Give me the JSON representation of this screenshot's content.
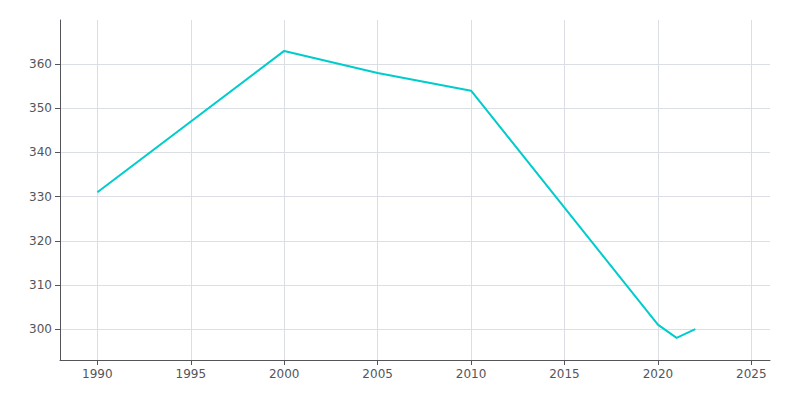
{
  "chart_data": {
    "type": "line",
    "x": [
      1990,
      2000,
      2005,
      2010,
      2020,
      2021,
      2022
    ],
    "values": [
      331,
      363,
      358,
      354,
      301,
      298,
      300
    ],
    "color": "#00CCCC",
    "xlim": [
      1988,
      2026
    ],
    "ylim": [
      293,
      370
    ],
    "xticks": [
      1990,
      1995,
      2000,
      2005,
      2010,
      2015,
      2020,
      2025
    ],
    "yticks": [
      300,
      310,
      320,
      330,
      340,
      350,
      360
    ],
    "grid": true
  }
}
